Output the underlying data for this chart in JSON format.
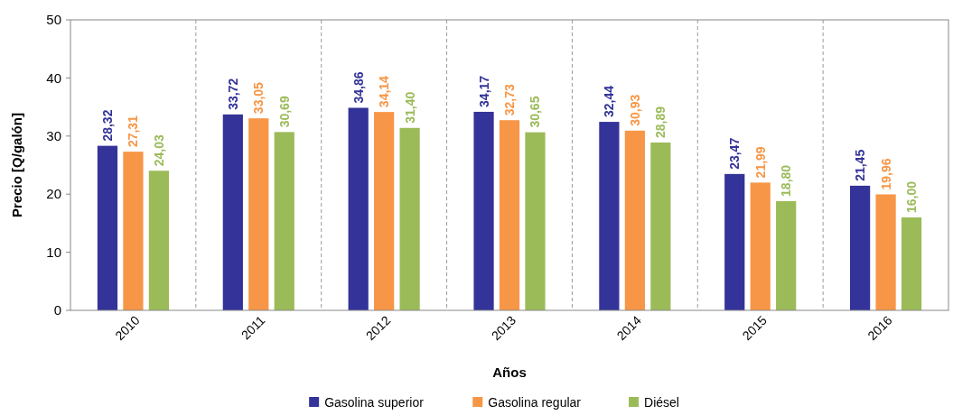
{
  "chart_data": {
    "type": "bar",
    "xlabel": "Años",
    "ylabel": "Precio [Q/galón]",
    "categories": [
      "2010",
      "2011",
      "2012",
      "2013",
      "2014",
      "2015",
      "2016"
    ],
    "series": [
      {
        "name": "Gasolina superior",
        "color": "#333399",
        "values": [
          28.32,
          33.72,
          34.86,
          34.17,
          32.44,
          23.47,
          21.45
        ],
        "value_labels": [
          "28,32",
          "33,72",
          "34,86",
          "34,17",
          "32,44",
          "23,47",
          "21,45"
        ]
      },
      {
        "name": "Gasolina regular",
        "color": "#f79646",
        "values": [
          27.31,
          33.05,
          34.14,
          32.73,
          30.93,
          21.99,
          19.96
        ],
        "value_labels": [
          "27,31",
          "33,05",
          "34,14",
          "32,73",
          "30,93",
          "21,99",
          "19,96"
        ]
      },
      {
        "name": "Diésel",
        "color": "#9bbb59",
        "values": [
          24.03,
          30.69,
          31.4,
          30.65,
          28.89,
          18.8,
          16.0
        ],
        "value_labels": [
          "24,03",
          "30,69",
          "31,40",
          "30,65",
          "28,89",
          "18,80",
          "16,00"
        ]
      }
    ],
    "ylim": [
      0,
      50
    ],
    "yticks": [
      0,
      10,
      20,
      30,
      40,
      50
    ],
    "grid": "x",
    "legend": "bottom"
  }
}
